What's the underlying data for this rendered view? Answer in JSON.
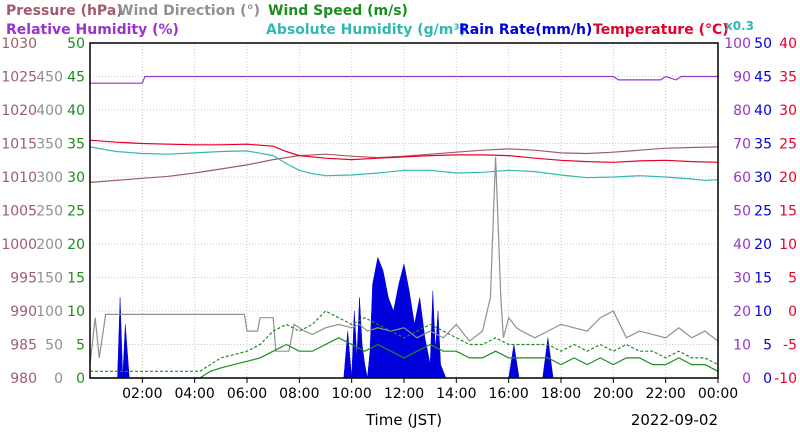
{
  "chart_data": {
    "type": "line",
    "date": "2022-09-02",
    "xlabel": "Time (JST)",
    "x_ticks": [
      "02:00",
      "04:00",
      "06:00",
      "08:00",
      "10:00",
      "12:00",
      "14:00",
      "16:00",
      "18:00",
      "20:00",
      "22:00",
      "00:00"
    ],
    "x_range_hours": [
      0,
      24
    ],
    "legend": [
      {
        "key": "pressure",
        "text": "Pressure (hPa)",
        "color": "#a05c6a"
      },
      {
        "key": "wind_dir",
        "text": "Wind Direction (°)",
        "color": "#909090"
      },
      {
        "key": "wind_speed",
        "text": "Wind Speed (m/s)",
        "color": "#1e8c1e"
      },
      {
        "key": "rh",
        "text": "Relative Humidity (%)",
        "color": "#9933cc"
      },
      {
        "key": "ah",
        "text": "Absolute Humidity (g/m³)",
        "color": "#33b8b0"
      },
      {
        "key": "rain",
        "text": "Rain Rate(mm/h)",
        "color": "#0000dd"
      },
      {
        "key": "temp",
        "text": "Temperature (°C)",
        "color": "#e8002a"
      }
    ],
    "rain_scale_note": "x0.3",
    "axes": {
      "pressure": {
        "ticks": [
          "1030",
          "1025",
          "1020",
          "1015",
          "1010",
          "1005",
          "1000",
          "995",
          "990",
          "985",
          "980"
        ],
        "color": "#a05c6a",
        "range": [
          980,
          1030
        ]
      },
      "wind_dir": {
        "ticks": [
          "450",
          "400",
          "350",
          "300",
          "250",
          "200",
          "150",
          "100",
          "50",
          "0"
        ],
        "color": "#909090",
        "range": [
          0,
          500
        ]
      },
      "wind_speed": {
        "ticks": [
          "50",
          "45",
          "40",
          "35",
          "30",
          "25",
          "20",
          "15",
          "10",
          "5",
          "0"
        ],
        "color": "#1e8c1e",
        "range": [
          0,
          50
        ]
      },
      "rh": {
        "ticks": [
          "100",
          "90",
          "80",
          "70",
          "60",
          "50",
          "40",
          "30",
          "20",
          "10",
          "0"
        ],
        "color": "#9933cc",
        "range": [
          0,
          100
        ]
      },
      "ah": {
        "ticks": [
          "50",
          "45",
          "40",
          "35",
          "30",
          "25",
          "20",
          "15",
          "10",
          "5",
          "0"
        ],
        "color": "#0000dd",
        "range": [
          0,
          50
        ]
      },
      "temp": {
        "ticks": [
          "40",
          "35",
          "30",
          "25",
          "20",
          "15",
          "10",
          "5",
          "0",
          "-5",
          "-10"
        ],
        "color": "#e8002a",
        "range": [
          -10,
          40
        ]
      }
    },
    "series": {
      "rh": {
        "x": [
          0,
          2.0,
          2.1,
          20.0,
          20.2,
          21.8,
          22.0,
          22.4,
          22.6,
          24
        ],
        "y": [
          88,
          88,
          90,
          90,
          89,
          89,
          90,
          89,
          90,
          90
        ]
      },
      "temp": {
        "x": [
          0,
          1,
          2,
          3,
          4,
          5,
          6,
          7,
          7.5,
          8,
          9,
          10,
          11,
          12,
          13,
          14,
          15,
          16,
          17,
          18,
          19,
          20,
          21,
          22,
          23,
          24
        ],
        "y": [
          25.5,
          25.2,
          25.0,
          24.9,
          24.8,
          24.8,
          24.9,
          24.6,
          23.8,
          23.2,
          22.8,
          22.6,
          22.8,
          23.0,
          23.2,
          23.3,
          23.3,
          23.2,
          22.8,
          22.5,
          22.3,
          22.2,
          22.4,
          22.5,
          22.3,
          22.2
        ]
      },
      "ah": {
        "x": [
          0,
          1,
          2,
          3,
          4,
          5,
          6,
          7,
          7.5,
          8,
          8.5,
          9,
          10,
          11,
          12,
          13,
          14,
          15,
          16,
          17,
          18,
          19,
          20,
          21,
          22,
          23,
          23.5,
          24
        ],
        "y": [
          34.5,
          33.8,
          33.5,
          33.4,
          33.6,
          33.8,
          33.9,
          33.2,
          32.0,
          31.0,
          30.5,
          30.2,
          30.3,
          30.6,
          31.0,
          31.0,
          30.6,
          30.7,
          31.0,
          30.8,
          30.3,
          29.9,
          30.0,
          30.2,
          30.0,
          29.7,
          29.5,
          29.6
        ]
      },
      "pressure": {
        "x": [
          0,
          1,
          2,
          3,
          4,
          5,
          6,
          7,
          8,
          9,
          10,
          11,
          12,
          13,
          14,
          15,
          16,
          17,
          18,
          19,
          20,
          21,
          22,
          23,
          24
        ],
        "y": [
          1009.2,
          1009.5,
          1009.8,
          1010.1,
          1010.6,
          1011.2,
          1011.8,
          1012.6,
          1013.2,
          1013.4,
          1013.1,
          1012.9,
          1013.1,
          1013.4,
          1013.7,
          1014.0,
          1014.2,
          1014.0,
          1013.6,
          1013.5,
          1013.7,
          1014.0,
          1014.3,
          1014.4,
          1014.5
        ]
      },
      "wind_dir": {
        "x": [
          0,
          0.2,
          0.35,
          0.6,
          1,
          2,
          3,
          4,
          5,
          5.9,
          6.0,
          6.4,
          6.5,
          7.0,
          7.1,
          7.6,
          7.8,
          8.2,
          8.5,
          9.0,
          9.5,
          10.0,
          10.3,
          10.6,
          11.0,
          11.5,
          12.0,
          12.5,
          13.0,
          13.5,
          14.0,
          14.5,
          15.0,
          15.3,
          15.5,
          15.7,
          15.8,
          16.0,
          16.3,
          16.5,
          17.0,
          17.5,
          18.0,
          18.5,
          19.0,
          19.5,
          20.0,
          20.5,
          21.0,
          21.5,
          22.0,
          22.5,
          23.0,
          23.5,
          24
        ],
        "y": [
          20,
          90,
          30,
          95,
          95,
          95,
          95,
          95,
          95,
          95,
          70,
          70,
          90,
          90,
          40,
          40,
          80,
          70,
          65,
          75,
          80,
          75,
          80,
          70,
          75,
          70,
          75,
          60,
          70,
          60,
          80,
          55,
          70,
          120,
          330,
          120,
          60,
          90,
          75,
          70,
          60,
          70,
          80,
          75,
          70,
          90,
          100,
          60,
          70,
          65,
          60,
          75,
          60,
          70,
          55
        ]
      },
      "wind_speed": {
        "x": [
          0,
          4.2,
          4.6,
          5,
          5.5,
          6,
          6.5,
          7,
          7.5,
          8,
          8.5,
          9,
          9.5,
          10,
          10.5,
          11,
          11.5,
          12,
          12.5,
          13,
          13.5,
          14,
          14.5,
          15,
          15.5,
          16,
          16.5,
          17,
          17.5,
          18,
          18.5,
          19,
          19.5,
          20,
          20.5,
          21,
          21.5,
          22,
          22.5,
          23,
          23.5,
          24
        ],
        "y": [
          0,
          0,
          1,
          1.5,
          2,
          2.5,
          3,
          4,
          5,
          4,
          4,
          5,
          6,
          5,
          4,
          5,
          4,
          3,
          4,
          5,
          4,
          4,
          3,
          3,
          4,
          3,
          3,
          3,
          3,
          2,
          3,
          2,
          3,
          2,
          3,
          3,
          2,
          2,
          3,
          2,
          2,
          1
        ]
      },
      "wind_gust": {
        "x": [
          0,
          4.2,
          4.6,
          5,
          5.5,
          6,
          6.5,
          7,
          7.5,
          8,
          8.5,
          9,
          9.5,
          10,
          10.5,
          11,
          11.5,
          12,
          12.5,
          13,
          13.5,
          14,
          14.5,
          15,
          15.5,
          16,
          16.5,
          17,
          17.5,
          18,
          18.5,
          19,
          19.5,
          20,
          20.5,
          21,
          21.5,
          22,
          22.5,
          23,
          23.5,
          24
        ],
        "y": [
          1,
          1,
          2,
          3,
          3.5,
          4,
          5,
          7,
          8,
          7,
          8,
          10,
          9,
          8,
          9,
          8,
          7,
          6,
          7,
          8,
          7,
          6,
          5,
          5,
          6,
          5,
          5,
          5,
          5,
          4,
          5,
          4,
          5,
          4,
          5,
          4,
          4,
          3,
          4,
          3,
          3,
          2
        ]
      },
      "rain": {
        "x": [
          0,
          1.05,
          1.15,
          1.25,
          1.35,
          1.5,
          9.7,
          9.85,
          10.0,
          10.1,
          10.2,
          10.3,
          10.4,
          10.5,
          10.6,
          10.7,
          10.8,
          11.0,
          11.2,
          11.4,
          11.6,
          11.8,
          12.0,
          12.2,
          12.4,
          12.6,
          12.8,
          13.0,
          13.1,
          13.2,
          13.3,
          13.4,
          13.6,
          13.8,
          16.0,
          16.2,
          16.4,
          17.3,
          17.5,
          17.7,
          24
        ],
        "y": [
          0,
          0,
          12,
          0,
          8,
          0,
          0,
          7,
          0,
          10,
          3,
          12,
          5,
          2,
          0,
          4,
          14,
          18,
          16,
          12,
          10,
          14,
          17,
          13,
          8,
          12,
          6,
          2,
          13,
          4,
          10,
          2,
          0,
          0,
          0,
          5,
          0,
          0,
          6,
          0,
          0
        ]
      }
    }
  }
}
